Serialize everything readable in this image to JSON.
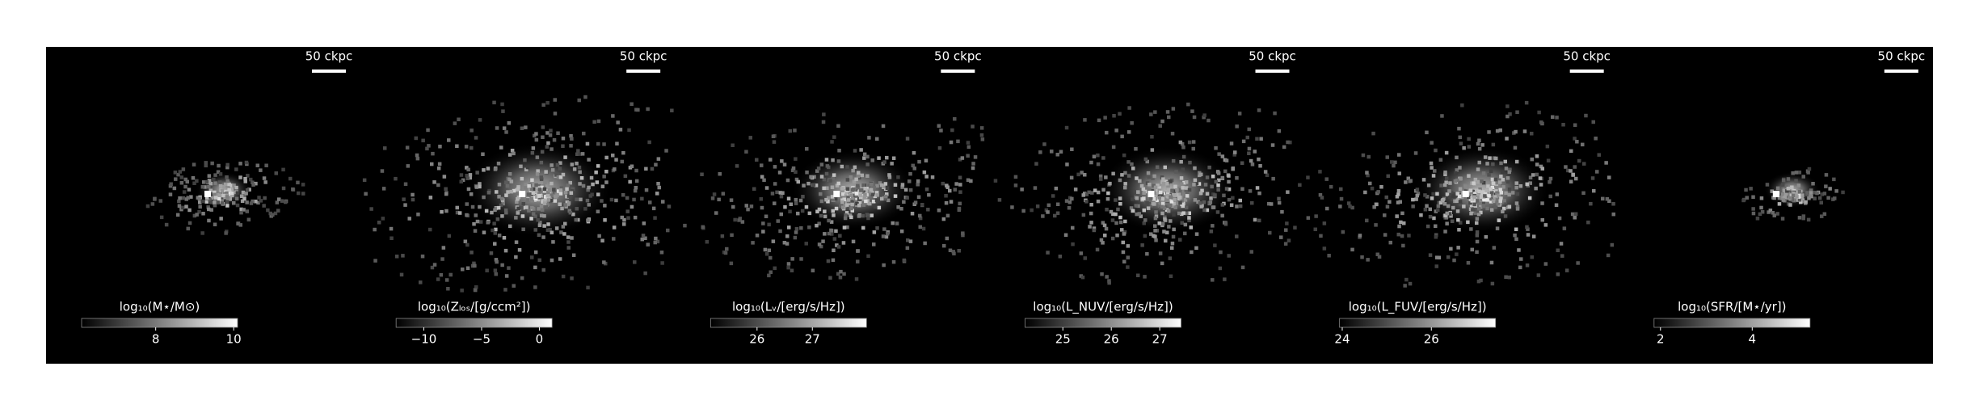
{
  "chart_data": [
    {
      "type": "image",
      "scale_label": "50 ckpc",
      "colorbar": {
        "label": "log₁₀(M⋆/M⊙)",
        "lim": [
          6.1,
          10.1
        ],
        "ticks": [
          8,
          10
        ]
      }
    },
    {
      "type": "image",
      "scale_label": "50 ckpc",
      "colorbar": {
        "label": "log₁₀(Zₗₒₛ/[g/ccm²])",
        "lim": [
          -12.4,
          1.1
        ],
        "ticks": [
          {
            "value": -10,
            "label": "−10"
          },
          {
            "value": -5,
            "label": "−5"
          },
          0
        ]
      }
    },
    {
      "type": "image",
      "scale_label": "50 ckpc",
      "colorbar": {
        "label": "log₁₀(Lᵥ/[erg/s/Hz])",
        "lim": [
          25.16,
          27.98
        ],
        "ticks": [
          26,
          27
        ]
      }
    },
    {
      "type": "image",
      "scale_label": "50 ckpc",
      "colorbar": {
        "label": "log₁₀(L_NUV/[erg/s/Hz])",
        "lim": [
          24.22,
          27.44
        ],
        "ticks": [
          25,
          26,
          27
        ]
      }
    },
    {
      "type": "image",
      "scale_label": "50 ckpc",
      "colorbar": {
        "label": "log₁₀(L_FUV/[erg/s/Hz])",
        "lim": [
          23.94,
          27.44
        ],
        "ticks": [
          24,
          26
        ]
      }
    },
    {
      "type": "image",
      "scale_label": "50 ckpc",
      "colorbar": {
        "label": "log₁₀(SFR/[M⋆/yr])",
        "lim": [
          1.86,
          5.26
        ],
        "ticks": [
          2,
          4
        ]
      }
    }
  ]
}
